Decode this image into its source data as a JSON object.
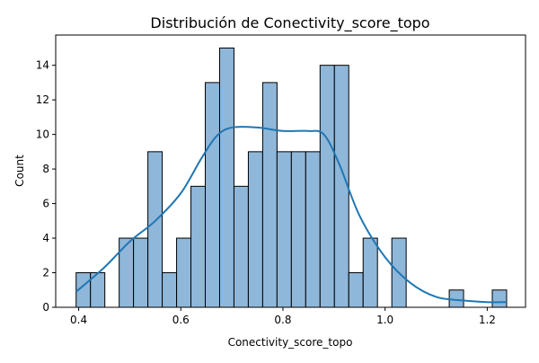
{
  "chart_data": {
    "type": "histogram",
    "title": "Distribución de Conectivity_score_topo",
    "xlabel": "Conectivity_score_topo",
    "ylabel": "Count",
    "xlim": [
      0.355,
      1.275
    ],
    "ylim": [
      0,
      15.75
    ],
    "xticks": [
      0.4,
      0.6,
      0.8,
      1.0,
      1.2
    ],
    "xtick_labels": [
      "0.4",
      "0.6",
      "0.8",
      "1.0",
      "1.2"
    ],
    "yticks": [
      0,
      2,
      4,
      6,
      8,
      10,
      12,
      14
    ],
    "ytick_labels": [
      "0",
      "2",
      "4",
      "6",
      "8",
      "10",
      "12",
      "14"
    ],
    "bins": {
      "start": 0.395,
      "width": 0.0281,
      "count": 30
    },
    "counts": [
      2,
      2,
      0,
      4,
      4,
      9,
      2,
      4,
      7,
      13,
      15,
      7,
      9,
      13,
      9,
      9,
      9,
      14,
      14,
      2,
      4,
      0,
      4,
      0,
      0,
      0,
      1,
      0,
      0,
      1
    ],
    "kde": {
      "x": [
        0.395,
        0.45,
        0.5,
        0.55,
        0.6,
        0.64,
        0.67,
        0.7,
        0.75,
        0.8,
        0.85,
        0.88,
        0.91,
        0.95,
        1.0,
        1.05,
        1.1,
        1.15,
        1.2,
        1.238
      ],
      "y": [
        0.9,
        2.3,
        3.8,
        5.0,
        6.6,
        8.6,
        9.9,
        10.4,
        10.4,
        10.2,
        10.2,
        10.0,
        8.3,
        5.3,
        2.9,
        1.4,
        0.6,
        0.4,
        0.3,
        0.3
      ]
    },
    "grid": false,
    "legend": "none",
    "colors": {
      "bar_fill": "#8fb7d9",
      "bar_edge": "#000000",
      "kde": "#1f77b4"
    }
  }
}
